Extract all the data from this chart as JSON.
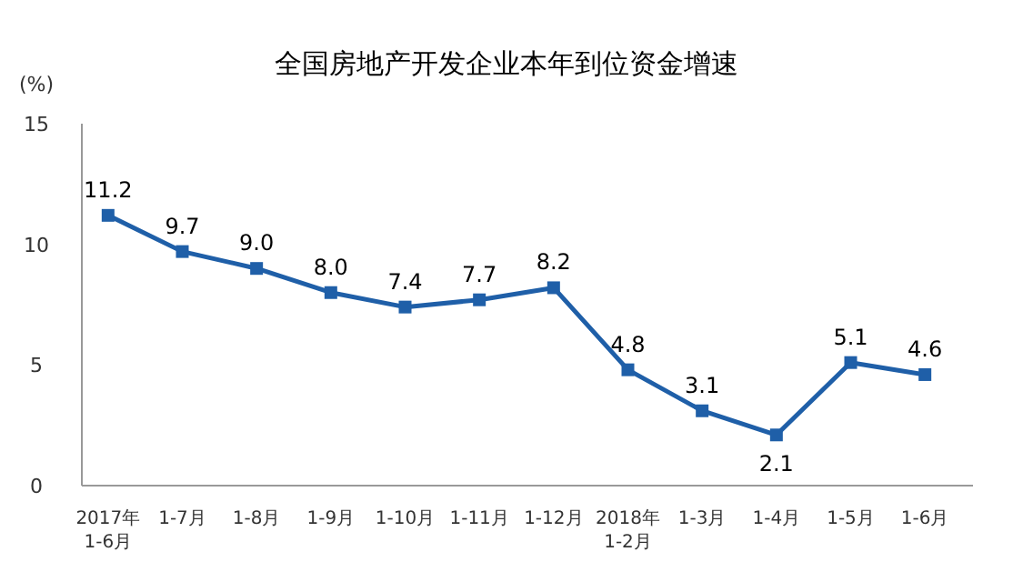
{
  "chart_data": {
    "type": "line",
    "title": "全国房地产开发企业本年到位资金增速",
    "ylabel": "(%)",
    "categories": [
      "2017年\n1-6月",
      "1-7月",
      "1-8月",
      "1-9月",
      "1-10月",
      "1-11月",
      "1-12月",
      "2018年\n1-2月",
      "1-3月",
      "1-4月",
      "1-5月",
      "1-6月"
    ],
    "values": [
      11.2,
      9.7,
      9.0,
      8.0,
      7.4,
      7.7,
      8.2,
      4.8,
      3.1,
      2.1,
      5.1,
      4.6
    ],
    "value_labels": [
      "11.2",
      "9.7",
      "9.0",
      "8.0",
      "7.4",
      "7.7",
      "8.2",
      "4.8",
      "3.1",
      "2.1",
      "5.1",
      "4.6"
    ],
    "color": "#1f5fa8",
    "marker": "square",
    "ylim": [
      0,
      15
    ],
    "yticks": [
      0,
      5,
      10,
      15
    ],
    "grid": false
  }
}
